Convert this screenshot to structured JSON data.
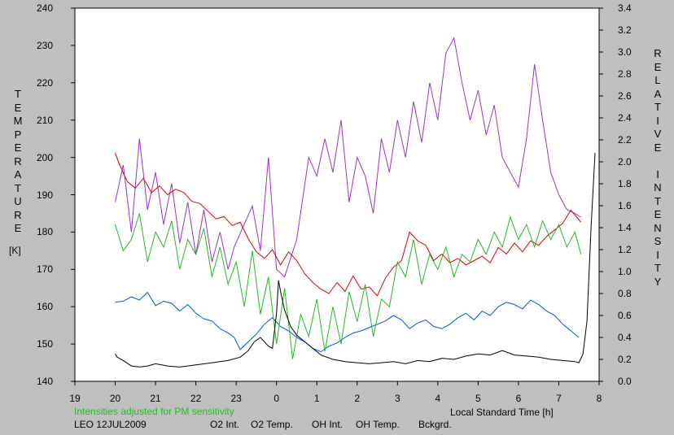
{
  "chart_data": {
    "type": "line",
    "title": "",
    "ylabel_left": "TEMPERATURE",
    "ylabel_left_unit": "[K]",
    "ylabel_right": "RELATIVE INTENSITY",
    "xlabel": "Local Standard Time [h]",
    "note": "Intensities adjusted for PM sensitivity",
    "station_date": "LEO 12JUL2009",
    "x_ticks": [
      "19",
      "20",
      "21",
      "22",
      "23",
      "0",
      "1",
      "2",
      "3",
      "4",
      "5",
      "6",
      "7",
      "8"
    ],
    "xlim": [
      19,
      32
    ],
    "ylim_left": [
      140,
      240
    ],
    "ylim_right": [
      0.0,
      3.4
    ],
    "y_left_ticks": [
      "140",
      "150",
      "160",
      "170",
      "180",
      "190",
      "200",
      "210",
      "220",
      "230",
      "240"
    ],
    "y_right_ticks": [
      "0.0",
      "0.2",
      "0.4",
      "0.6",
      "0.8",
      "1.0",
      "1.2",
      "1.4",
      "1.6",
      "1.8",
      "2.0",
      "2.2",
      "2.4",
      "2.6",
      "2.8",
      "3.0",
      "3.2",
      "3.4"
    ],
    "grid": false,
    "legend_position": "bottom",
    "series": [
      {
        "name": "O2 Int.",
        "axis": "right",
        "color": "#0055dd",
        "x": [
          20.0,
          20.2,
          20.4,
          20.6,
          20.8,
          21.0,
          21.2,
          21.4,
          21.6,
          21.8,
          22.0,
          22.2,
          22.4,
          22.6,
          22.8,
          22.95,
          23.1,
          23.3,
          23.5,
          23.7,
          23.9,
          24.1,
          24.3,
          24.5,
          24.7,
          24.9,
          25.1,
          25.3,
          25.5,
          25.7,
          25.9,
          26.1,
          26.3,
          26.5,
          26.7,
          26.9,
          27.1,
          27.3,
          27.5,
          27.7,
          27.9,
          28.1,
          28.3,
          28.5,
          28.7,
          28.9,
          29.1,
          29.3,
          29.5,
          29.7,
          29.9,
          30.1,
          30.3,
          30.5,
          30.7,
          30.9,
          31.1,
          31.3,
          31.5
        ],
        "y": [
          0.72,
          0.73,
          0.77,
          0.74,
          0.81,
          0.69,
          0.73,
          0.71,
          0.64,
          0.7,
          0.62,
          0.57,
          0.55,
          0.48,
          0.44,
          0.4,
          0.29,
          0.36,
          0.43,
          0.52,
          0.58,
          0.5,
          0.46,
          0.4,
          0.36,
          0.3,
          0.27,
          0.32,
          0.35,
          0.4,
          0.44,
          0.46,
          0.49,
          0.52,
          0.55,
          0.6,
          0.56,
          0.48,
          0.53,
          0.56,
          0.5,
          0.48,
          0.52,
          0.58,
          0.62,
          0.56,
          0.64,
          0.6,
          0.68,
          0.72,
          0.7,
          0.66,
          0.74,
          0.7,
          0.64,
          0.6,
          0.52,
          0.46,
          0.4
        ]
      },
      {
        "name": "O2 Temp.",
        "axis": "left",
        "color": "#9933cc",
        "x": [
          20.0,
          20.2,
          20.4,
          20.6,
          20.8,
          21.0,
          21.2,
          21.4,
          21.6,
          21.8,
          22.0,
          22.2,
          22.4,
          22.6,
          22.8,
          22.95,
          23.4,
          23.6,
          23.8,
          24.0,
          24.2,
          24.5,
          24.8,
          25.0,
          25.2,
          25.4,
          25.6,
          25.8,
          26.0,
          26.2,
          26.4,
          26.6,
          26.8,
          27.0,
          27.2,
          27.4,
          27.6,
          27.8,
          28.0,
          28.2,
          28.4,
          28.6,
          28.8,
          29.0,
          29.2,
          29.4,
          29.6,
          29.8,
          30.0,
          30.2,
          30.4,
          30.6,
          30.8,
          31.0,
          31.2,
          31.4,
          31.55
        ],
        "y": [
          188,
          198,
          180,
          205,
          186,
          196,
          182,
          193,
          177,
          188,
          174,
          186,
          172,
          180,
          170,
          176,
          187,
          175,
          200,
          170,
          168,
          178,
          200,
          195,
          205,
          196,
          210,
          188,
          200,
          195,
          185,
          205,
          196,
          210,
          200,
          215,
          204,
          220,
          210,
          228,
          232,
          220,
          210,
          218,
          206,
          214,
          200,
          196,
          192,
          205,
          225,
          210,
          196,
          190,
          186,
          185,
          184
        ]
      },
      {
        "name": "OH Int.",
        "axis": "right",
        "color": "#dd0000",
        "x": [
          20.0,
          20.1,
          20.3,
          20.5,
          20.7,
          20.9,
          21.1,
          21.3,
          21.5,
          21.7,
          21.9,
          22.1,
          22.3,
          22.5,
          22.7,
          22.9,
          23.1,
          23.3,
          23.5,
          23.7,
          23.9,
          24.1,
          24.3,
          24.5,
          24.7,
          24.9,
          25.1,
          25.3,
          25.5,
          25.7,
          25.9,
          26.1,
          26.3,
          26.5,
          26.7,
          26.9,
          27.1,
          27.3,
          27.5,
          27.7,
          27.9,
          28.1,
          28.3,
          28.5,
          28.7,
          28.9,
          29.1,
          29.3,
          29.5,
          29.7,
          29.9,
          30.1,
          30.3,
          30.5,
          30.7,
          30.9,
          31.1,
          31.3,
          31.55
        ],
        "y": [
          2.08,
          1.98,
          1.82,
          1.76,
          1.85,
          1.72,
          1.78,
          1.7,
          1.75,
          1.72,
          1.64,
          1.62,
          1.55,
          1.48,
          1.5,
          1.42,
          1.45,
          1.3,
          1.18,
          1.12,
          1.2,
          1.06,
          1.18,
          1.1,
          0.98,
          0.9,
          0.84,
          0.8,
          0.9,
          0.82,
          0.96,
          0.84,
          0.86,
          0.78,
          0.94,
          1.04,
          1.1,
          1.36,
          1.28,
          1.24,
          1.1,
          1.16,
          1.08,
          1.12,
          1.06,
          1.1,
          1.14,
          1.08,
          1.22,
          1.16,
          1.26,
          1.18,
          1.28,
          1.24,
          1.32,
          1.38,
          1.44,
          1.56,
          1.45
        ]
      },
      {
        "name": "OH Temp.",
        "axis": "left",
        "color": "#22bb22",
        "x": [
          20.0,
          20.2,
          20.4,
          20.6,
          20.8,
          21.0,
          21.2,
          21.4,
          21.6,
          21.8,
          22.0,
          22.2,
          22.4,
          22.6,
          22.8,
          23.0,
          23.2,
          23.4,
          23.6,
          23.8,
          24.0,
          24.2,
          24.4,
          24.6,
          24.8,
          25.0,
          25.2,
          25.4,
          25.6,
          25.8,
          26.0,
          26.2,
          26.4,
          26.6,
          26.8,
          27.0,
          27.2,
          27.4,
          27.6,
          27.8,
          28.0,
          28.2,
          28.4,
          28.6,
          28.8,
          29.0,
          29.2,
          29.4,
          29.6,
          29.8,
          30.0,
          30.2,
          30.4,
          30.6,
          30.8,
          31.0,
          31.2,
          31.4,
          31.55
        ],
        "y": [
          182,
          175,
          178,
          185,
          172,
          180,
          176,
          183,
          170,
          178,
          174,
          181,
          168,
          176,
          166,
          172,
          160,
          175,
          158,
          168,
          150,
          165,
          146,
          158,
          152,
          162,
          148,
          160,
          150,
          164,
          156,
          166,
          152,
          162,
          160,
          172,
          168,
          178,
          166,
          174,
          170,
          176,
          168,
          174,
          172,
          178,
          174,
          180,
          176,
          184,
          178,
          182,
          176,
          183,
          178,
          182,
          176,
          180,
          174
        ]
      },
      {
        "name": "Bckgrd.",
        "axis": "right",
        "color": "#000000",
        "x": [
          20.0,
          20.05,
          20.2,
          20.4,
          20.6,
          20.8,
          21.0,
          21.3,
          21.6,
          22.0,
          22.4,
          22.8,
          23.1,
          23.3,
          23.45,
          23.6,
          23.8,
          23.9,
          24.0,
          24.05,
          24.1,
          24.2,
          24.35,
          24.5,
          24.7,
          24.9,
          25.1,
          25.4,
          25.7,
          26.0,
          26.3,
          26.6,
          26.9,
          27.2,
          27.5,
          27.8,
          28.1,
          28.4,
          28.7,
          29.0,
          29.3,
          29.6,
          29.9,
          30.2,
          30.5,
          30.8,
          31.1,
          31.4,
          31.5,
          31.6,
          31.7,
          31.8,
          31.9
        ],
        "y": [
          0.25,
          0.22,
          0.19,
          0.14,
          0.13,
          0.14,
          0.16,
          0.14,
          0.13,
          0.15,
          0.17,
          0.19,
          0.22,
          0.28,
          0.36,
          0.4,
          0.32,
          0.3,
          0.62,
          0.92,
          0.82,
          0.65,
          0.5,
          0.42,
          0.36,
          0.3,
          0.24,
          0.2,
          0.18,
          0.17,
          0.16,
          0.17,
          0.18,
          0.16,
          0.19,
          0.18,
          0.21,
          0.2,
          0.23,
          0.25,
          0.24,
          0.28,
          0.24,
          0.23,
          0.22,
          0.2,
          0.19,
          0.18,
          0.17,
          0.25,
          0.55,
          1.4,
          2.08
        ]
      }
    ]
  }
}
